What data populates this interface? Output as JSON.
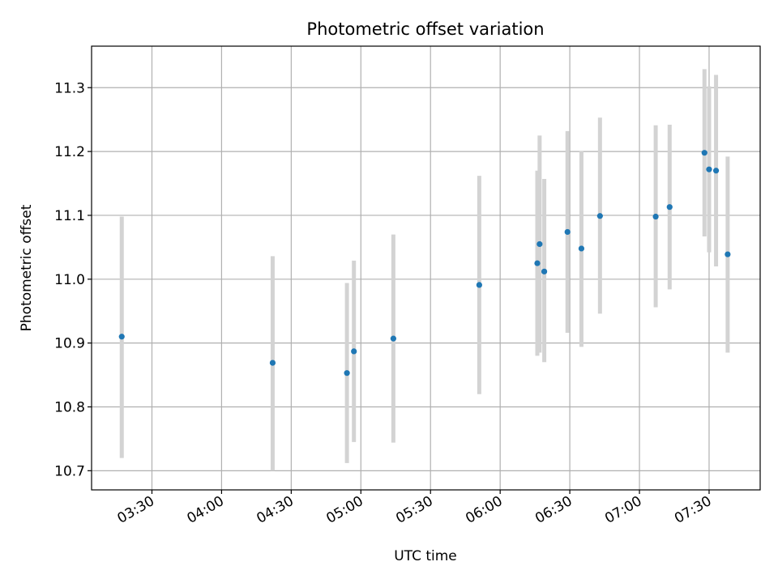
{
  "chart_data": {
    "type": "scatter",
    "title": "Photometric offset variation",
    "xlabel": "UTC time",
    "ylabel": "Photometric offset",
    "x_unit": "UTC time (HH:MM)",
    "xlim": [
      "03:04",
      "07:52"
    ],
    "ylim": [
      10.67,
      11.365
    ],
    "x_ticks": [
      "03:30",
      "04:00",
      "04:30",
      "05:00",
      "05:30",
      "06:00",
      "06:30",
      "07:00",
      "07:30"
    ],
    "y_ticks": [
      "10.7",
      "10.8",
      "10.9",
      "11.0",
      "11.1",
      "11.2",
      "11.3"
    ],
    "grid": true,
    "point_color": "#1f77b4",
    "errorbar_color": "#d3d3d3",
    "points": [
      {
        "x": "03:17",
        "y": 10.91,
        "ylow": 10.72,
        "yhigh": 11.098
      },
      {
        "x": "04:22",
        "y": 10.869,
        "ylow": 10.7,
        "yhigh": 11.036
      },
      {
        "x": "04:54",
        "y": 10.853,
        "ylow": 10.712,
        "yhigh": 10.994
      },
      {
        "x": "04:57",
        "y": 10.887,
        "ylow": 10.745,
        "yhigh": 11.029
      },
      {
        "x": "05:14",
        "y": 10.907,
        "ylow": 10.744,
        "yhigh": 11.07
      },
      {
        "x": "05:51",
        "y": 10.991,
        "ylow": 10.82,
        "yhigh": 11.162
      },
      {
        "x": "06:16",
        "y": 11.025,
        "ylow": 10.88,
        "yhigh": 11.17
      },
      {
        "x": "06:17",
        "y": 11.055,
        "ylow": 10.885,
        "yhigh": 11.225
      },
      {
        "x": "06:19",
        "y": 11.012,
        "ylow": 10.87,
        "yhigh": 11.157
      },
      {
        "x": "06:29",
        "y": 11.074,
        "ylow": 10.916,
        "yhigh": 11.232
      },
      {
        "x": "06:35",
        "y": 11.048,
        "ylow": 10.894,
        "yhigh": 11.201
      },
      {
        "x": "06:43",
        "y": 11.099,
        "ylow": 10.946,
        "yhigh": 11.253
      },
      {
        "x": "07:07",
        "y": 11.098,
        "ylow": 10.956,
        "yhigh": 11.241
      },
      {
        "x": "07:13",
        "y": 11.113,
        "ylow": 10.984,
        "yhigh": 11.242
      },
      {
        "x": "07:28",
        "y": 11.198,
        "ylow": 11.067,
        "yhigh": 11.329
      },
      {
        "x": "07:30",
        "y": 11.172,
        "ylow": 11.042,
        "yhigh": 11.302
      },
      {
        "x": "07:33",
        "y": 11.17,
        "ylow": 11.02,
        "yhigh": 11.32
      },
      {
        "x": "07:38",
        "y": 11.039,
        "ylow": 10.885,
        "yhigh": 11.192
      }
    ]
  }
}
